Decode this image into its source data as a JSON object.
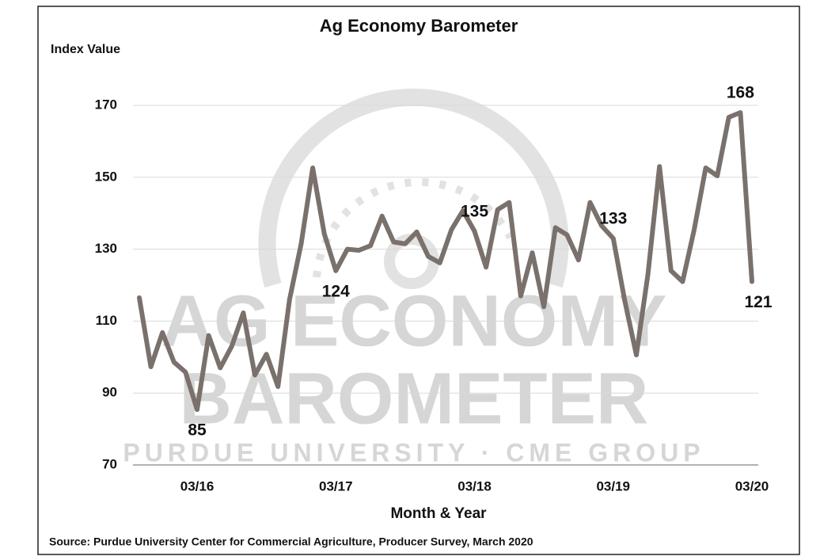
{
  "chart_data": {
    "type": "line",
    "title": "Ag Economy Barometer",
    "y_label": "Index Value",
    "x_label": "Month & Year",
    "source": "Source: Purdue University Center for Commercial Agriculture, Producer Survey, March 2020",
    "watermark": [
      "AG ECONOMY",
      "BAROMETER",
      "PURDUE UNIVERSITY · CME GROUP"
    ],
    "categories": [
      null,
      null,
      null,
      null,
      null,
      "03/16",
      null,
      null,
      null,
      null,
      null,
      null,
      null,
      null,
      null,
      null,
      null,
      "03/17",
      null,
      null,
      null,
      null,
      null,
      null,
      null,
      null,
      null,
      null,
      null,
      "03/18",
      null,
      null,
      null,
      null,
      null,
      null,
      null,
      null,
      null,
      null,
      null,
      "03/19",
      null,
      null,
      null,
      null,
      null,
      null,
      null,
      null,
      null,
      null,
      null,
      "03/20"
    ],
    "values": [
      116.5,
      97.3,
      106.8,
      98.6,
      95.8,
      85.4,
      106,
      97,
      103,
      112.3,
      95,
      100.8,
      91.8,
      116,
      131.5,
      152.6,
      134.3,
      124,
      130,
      129.7,
      131,
      139.2,
      132,
      131.5,
      134.8,
      128,
      126.2,
      135.4,
      140.7,
      135,
      125,
      141,
      143,
      117,
      129,
      114,
      136,
      134,
      127,
      143,
      136.5,
      133,
      115.6,
      100.6,
      123,
      153,
      124,
      121,
      135.4,
      152.6,
      150.4,
      166.7,
      168,
      121
    ],
    "value_labels": [
      null,
      null,
      null,
      null,
      null,
      "85",
      null,
      null,
      null,
      null,
      null,
      null,
      null,
      null,
      null,
      null,
      null,
      "124",
      null,
      null,
      null,
      null,
      null,
      null,
      null,
      null,
      null,
      null,
      null,
      "135",
      null,
      null,
      null,
      null,
      null,
      null,
      null,
      null,
      null,
      null,
      null,
      "133",
      null,
      null,
      null,
      null,
      null,
      null,
      null,
      null,
      null,
      null,
      "168",
      "121"
    ],
    "color": "#7a716c",
    "ylim": [
      70,
      170
    ],
    "yticks": [
      70,
      90,
      110,
      130,
      150,
      170
    ],
    "grid": true
  }
}
